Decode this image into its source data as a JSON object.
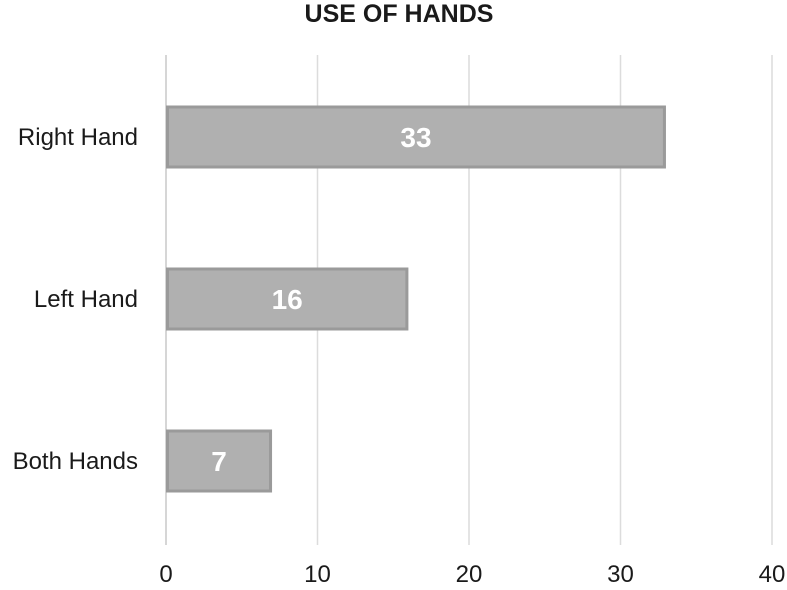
{
  "chart_data": {
    "type": "bar",
    "orientation": "horizontal",
    "title": "USE OF HANDS",
    "categories": [
      "Right Hand",
      "Left Hand",
      "Both Hands"
    ],
    "values": [
      33,
      16,
      7
    ],
    "data_labels": [
      "33",
      "16",
      "7"
    ],
    "xlim": [
      0,
      40
    ],
    "x_ticks": [
      0,
      10,
      20,
      30,
      40
    ],
    "x_tick_labels": [
      "0",
      "10",
      "20",
      "30",
      "40"
    ],
    "xlabel": "",
    "ylabel": "",
    "grid": true,
    "legend": "none",
    "colors": {
      "bar_fill": "#b0b0b0",
      "bar_stroke": "#9a9a9a",
      "gridline": "#dcdcdc",
      "data_label": "#ffffff",
      "text": "#1a1a1a"
    }
  }
}
